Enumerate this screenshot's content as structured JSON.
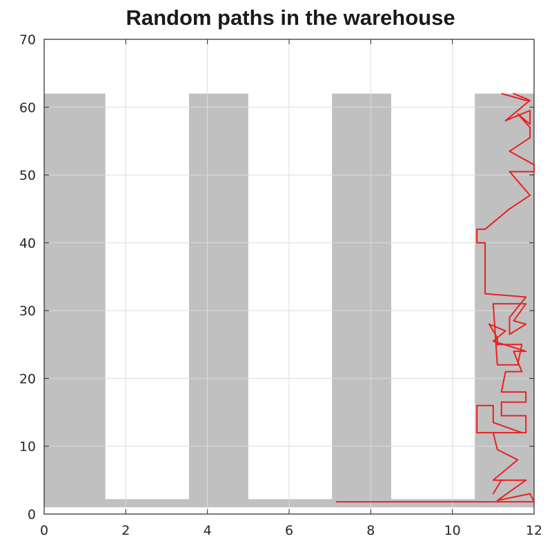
{
  "chart_data": {
    "type": "line",
    "title": "Random paths in the warehouse",
    "xlabel": "",
    "ylabel": "",
    "xlim": [
      0,
      12
    ],
    "ylim": [
      0,
      70
    ],
    "xticks": [
      0,
      2,
      4,
      6,
      8,
      10,
      12
    ],
    "yticks": [
      0,
      10,
      20,
      30,
      40,
      50,
      60,
      70
    ],
    "grid": true,
    "colors": {
      "paths_area": "#c0c0c0",
      "highlight_path": "#e8211f",
      "axes": "#262626",
      "grid": "#dcdcdc"
    },
    "path_regions": [
      {
        "x": [
          0.0,
          1.5
        ],
        "y": [
          1.0,
          62.0
        ]
      },
      {
        "x": [
          3.55,
          5.0
        ],
        "y": [
          1.0,
          62.0
        ]
      },
      {
        "x": [
          7.05,
          8.5
        ],
        "y": [
          1.0,
          62.0
        ]
      },
      {
        "x": [
          10.55,
          12.0
        ],
        "y": [
          1.0,
          62.0
        ]
      }
    ],
    "corridor": {
      "y": [
        1.0,
        2.2
      ],
      "x": [
        0.0,
        12.0
      ]
    },
    "series": [
      {
        "x": [
          7.15,
          12.0,
          11.9,
          11.1,
          11.8,
          11.2,
          11.0,
          11.2,
          11.0,
          11.6,
          11.1,
          11.0,
          11.7,
          11.0,
          11.0,
          10.6,
          10.6,
          11.8,
          11.8,
          11.2,
          11.2,
          11.8,
          11.8,
          11.2,
          11.3,
          11.7,
          11.5,
          11.8,
          11.0,
          11.3,
          10.9,
          11.1,
          11.1,
          11.7,
          11.6,
          11.1,
          11.0,
          11.8,
          11.5,
          11.8,
          11.4,
          11.4,
          11.8,
          10.8,
          10.8,
          10.6,
          10.6,
          10.8,
          11.4,
          11.9,
          11.4,
          12.0,
          12.0,
          11.4,
          11.9,
          11.9,
          11.6,
          11.9,
          11.9,
          11.3,
          11.9,
          11.5,
          11.9,
          11.8,
          11.2
        ],
        "y": [
          1.8,
          1.8,
          3.0,
          2.0,
          5.0,
          5.0,
          3.0,
          5.0,
          5.0,
          8.0,
          9.5,
          12.0,
          12.0,
          13.5,
          16.0,
          16.0,
          12.0,
          12.0,
          14.5,
          14.5,
          16.5,
          16.5,
          18.0,
          18.0,
          21.0,
          21.0,
          24.0,
          24.0,
          25.5,
          27.0,
          28.0,
          26.0,
          25.0,
          25.0,
          22.0,
          22.0,
          31.0,
          31.0,
          28.5,
          28.0,
          26.5,
          29.0,
          32.0,
          32.5,
          40.0,
          40.0,
          42.0,
          42.0,
          45.0,
          47.0,
          50.5,
          50.5,
          51.5,
          53.5,
          55.5,
          57.0,
          59.0,
          57.5,
          59.5,
          58.0,
          61.0,
          62.0,
          61.0,
          61.0,
          62.0
        ]
      }
    ]
  }
}
